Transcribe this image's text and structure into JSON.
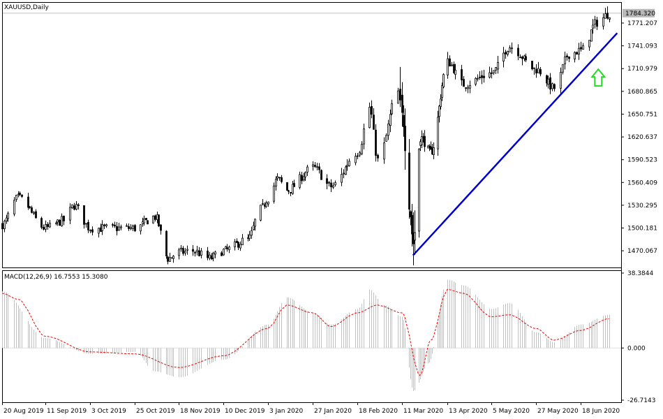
{
  "chart_data": [
    {
      "type": "candlestick",
      "title": "XAUUSD,Daily",
      "symbol": "XAUUSD",
      "timeframe": "Daily",
      "current_price_label": "1784.320",
      "y_ticks": [
        "1771.207",
        "1741.093",
        "1710.979",
        "1680.865",
        "1650.751",
        "1620.637",
        "1590.523",
        "1560.409",
        "1530.295",
        "1500.181",
        "1470.067"
      ],
      "ylim": [
        1448,
        1798
      ],
      "x_ticks": [
        "20 Aug 2019",
        "11 Sep 2019",
        "3 Oct 2019",
        "25 Oct 2019",
        "18 Nov 2019",
        "10 Dec 2019",
        "3 Jan 2020",
        "27 Jan 2020",
        "18 Feb 2020",
        "11 Mar 2020",
        "13 Apr 2020",
        "5 May 2020",
        "27 May 2020",
        "18 Jun 2020"
      ],
      "close_anchors": [
        {
          "date": "20 Aug 2019",
          "close": 1505
        },
        {
          "date": "28 Aug 2019",
          "close": 1540
        },
        {
          "date": "11 Sep 2019",
          "close": 1500
        },
        {
          "date": "20 Sep 2019",
          "close": 1510
        },
        {
          "date": "25 Sep 2019",
          "close": 1530
        },
        {
          "date": "3 Oct 2019",
          "close": 1500
        },
        {
          "date": "25 Oct 2019",
          "close": 1500
        },
        {
          "date": "5 Nov 2019",
          "close": 1515
        },
        {
          "date": "12 Nov 2019",
          "close": 1460
        },
        {
          "date": "18 Nov 2019",
          "close": 1468
        },
        {
          "date": "25 Nov 2019",
          "close": 1470
        },
        {
          "date": "3 Dec 2019",
          "close": 1460
        },
        {
          "date": "10 Dec 2019",
          "close": 1470
        },
        {
          "date": "23 Dec 2019",
          "close": 1485
        },
        {
          "date": "30 Dec 2019",
          "close": 1525
        },
        {
          "date": "3 Jan 2020",
          "close": 1540
        },
        {
          "date": "8 Jan 2020",
          "close": 1565
        },
        {
          "date": "13 Jan 2020",
          "close": 1550
        },
        {
          "date": "27 Jan 2020",
          "close": 1580
        },
        {
          "date": "5 Feb 2020",
          "close": 1555
        },
        {
          "date": "18 Feb 2020",
          "close": 1600
        },
        {
          "date": "24 Feb 2020",
          "close": 1660
        },
        {
          "date": "28 Feb 2020",
          "close": 1590
        },
        {
          "date": "9 Mar 2020",
          "close": 1680
        },
        {
          "date": "11 Mar 2020",
          "close": 1650
        },
        {
          "date": "16 Mar 2020",
          "close": 1530
        },
        {
          "date": "19 Mar 2020",
          "close": 1480
        },
        {
          "date": "24 Mar 2020",
          "close": 1620
        },
        {
          "date": "1 Apr 2020",
          "close": 1600
        },
        {
          "date": "13 Apr 2020",
          "close": 1720
        },
        {
          "date": "21 Apr 2020",
          "close": 1690
        },
        {
          "date": "5 May 2020",
          "close": 1705
        },
        {
          "date": "14 May 2020",
          "close": 1740
        },
        {
          "date": "27 May 2020",
          "close": 1710
        },
        {
          "date": "5 Jun 2020",
          "close": 1685
        },
        {
          "date": "12 Jun 2020",
          "close": 1730
        },
        {
          "date": "18 Jun 2020",
          "close": 1735
        },
        {
          "date": "26 Jun 2020",
          "close": 1772
        },
        {
          "date": "2 Jul 2020",
          "close": 1784
        }
      ],
      "trend_line": {
        "from": {
          "date": "19 Mar 2020",
          "value": 1464
        },
        "to": {
          "date": "6 Jul 2020",
          "value": 1758
        }
      },
      "annotation_arrow": {
        "direction": "up",
        "color": "#22dd22"
      },
      "colors": {
        "candle": "#000000",
        "background": "#ffffff",
        "trend_line": "#0000cc",
        "price_line": "#c0c0c0"
      }
    },
    {
      "type": "bar+line",
      "title": "MACD(12,26,9) 16.7553 15.3080",
      "indicator": "MACD(12,26,9)",
      "main_value": "16.7553",
      "signal_value": "15.3080",
      "y_ticks": [
        "38.3844",
        "0.000",
        "-26.7143"
      ],
      "ylim": [
        -26.7143,
        38.3844
      ],
      "histogram_anchors": [
        {
          "date": "20 Aug 2019",
          "value": 29
        },
        {
          "date": "11 Sep 2019",
          "value": 5
        },
        {
          "date": "3 Oct 2019",
          "value": -3
        },
        {
          "date": "25 Oct 2019",
          "value": -2
        },
        {
          "date": "5 Nov 2019",
          "value": -12
        },
        {
          "date": "18 Nov 2019",
          "value": -15
        },
        {
          "date": "10 Dec 2019",
          "value": -6
        },
        {
          "date": "3 Jan 2020",
          "value": 12
        },
        {
          "date": "13 Jan 2020",
          "value": 26
        },
        {
          "date": "27 Jan 2020",
          "value": 18
        },
        {
          "date": "5 Feb 2020",
          "value": 12
        },
        {
          "date": "18 Feb 2020",
          "value": 20
        },
        {
          "date": "24 Feb 2020",
          "value": 30
        },
        {
          "date": "2 Mar 2020",
          "value": 22
        },
        {
          "date": "11 Mar 2020",
          "value": 16
        },
        {
          "date": "19 Mar 2020",
          "value": -22
        },
        {
          "date": "30 Mar 2020",
          "value": -8
        },
        {
          "date": "13 Apr 2020",
          "value": 35
        },
        {
          "date": "21 Apr 2020",
          "value": 32
        },
        {
          "date": "5 May 2020",
          "value": 20
        },
        {
          "date": "14 May 2020",
          "value": 23
        },
        {
          "date": "27 May 2020",
          "value": 8
        },
        {
          "date": "5 Jun 2020",
          "value": 3
        },
        {
          "date": "18 Jun 2020",
          "value": 12
        },
        {
          "date": "2 Jul 2020",
          "value": 17
        }
      ],
      "signal_anchors": [
        {
          "date": "20 Aug 2019",
          "value": 28
        },
        {
          "date": "28 Aug 2019",
          "value": 25
        },
        {
          "date": "11 Sep 2019",
          "value": 6
        },
        {
          "date": "3 Oct 2019",
          "value": -2
        },
        {
          "date": "25 Oct 2019",
          "value": -3
        },
        {
          "date": "18 Nov 2019",
          "value": -10
        },
        {
          "date": "10 Dec 2019",
          "value": -4
        },
        {
          "date": "3 Jan 2020",
          "value": 10
        },
        {
          "date": "13 Jan 2020",
          "value": 22
        },
        {
          "date": "27 Jan 2020",
          "value": 18
        },
        {
          "date": "5 Feb 2020",
          "value": 11
        },
        {
          "date": "18 Feb 2020",
          "value": 18
        },
        {
          "date": "28 Feb 2020",
          "value": 22
        },
        {
          "date": "11 Mar 2020",
          "value": 18
        },
        {
          "date": "24 Mar 2020",
          "value": -14
        },
        {
          "date": "1 Apr 2020",
          "value": 4
        },
        {
          "date": "13 Apr 2020",
          "value": 30
        },
        {
          "date": "21 Apr 2020",
          "value": 28
        },
        {
          "date": "5 May 2020",
          "value": 16
        },
        {
          "date": "14 May 2020",
          "value": 17
        },
        {
          "date": "27 May 2020",
          "value": 10
        },
        {
          "date": "5 Jun 2020",
          "value": 4
        },
        {
          "date": "18 Jun 2020",
          "value": 9
        },
        {
          "date": "2 Jul 2020",
          "value": 15
        }
      ],
      "colors": {
        "histogram": "#c0c0c0",
        "signal": "#ee0000"
      }
    }
  ]
}
